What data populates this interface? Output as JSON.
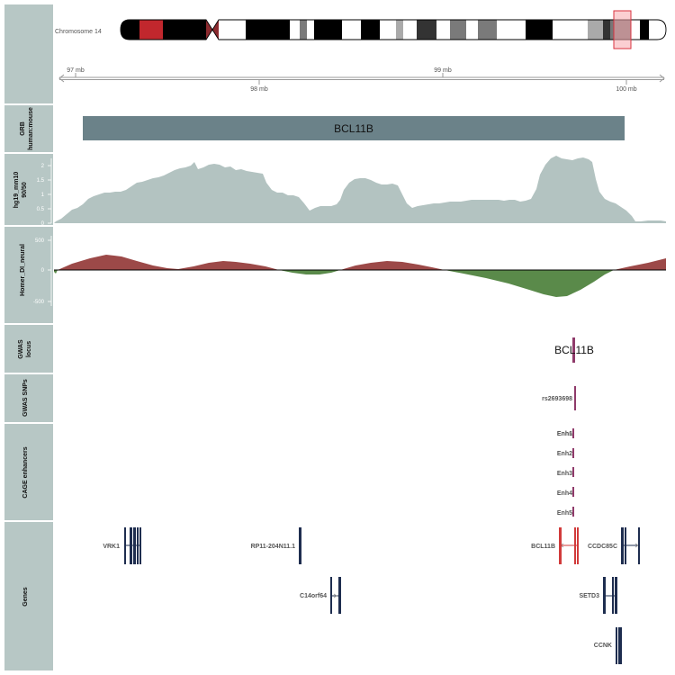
{
  "ideogram": {
    "chromosome_label": "Chromosome 14"
  },
  "axis": {
    "top_ticks": [
      "97 mb",
      "99 mb"
    ],
    "bottom_ticks": [
      "98 mb",
      "100 mb"
    ]
  },
  "tracks": {
    "grb": {
      "label_line1": "GRB",
      "label_line2": "human:mouse",
      "feature": "BCL11B",
      "color": "#6b8289"
    },
    "conservation": {
      "label_line1": "hg19_mm10",
      "label_line2": "90/50",
      "ticks": [
        "0",
        "0.5",
        "1",
        "1.5",
        "2"
      ],
      "color": "#b3c3c1"
    },
    "homer": {
      "label": "Homer_DI_neural",
      "ticks": [
        "500",
        "0",
        "-500"
      ],
      "positive_color": "#9c4948",
      "negative_color": "#5a8a4a"
    },
    "gwas_locus": {
      "label_line1": "GWAS",
      "label_line2": "locus",
      "feature": "BCL11B",
      "color": "#8f3a6a"
    },
    "gwas_snps": {
      "label": "GWAS SNPs",
      "feature": "rs2693698"
    },
    "cage": {
      "label": "CAGE enhancers",
      "items": [
        "Enh1",
        "Enh2",
        "Enh3",
        "Enh4",
        "Enh5"
      ],
      "overlap_label": "Enh6"
    },
    "genes": {
      "label": "Genes",
      "items": [
        "VRK1",
        "RP11-204N11.1",
        "BCL11B",
        "CCDC85C",
        "C14orf64",
        "SETD3",
        "CCNK"
      ],
      "gene_color": "#1e2d4f",
      "highlight_color": "#d13a3a"
    }
  },
  "colors": {
    "panel_bg": "#b7c7c5",
    "centromere": "#8b2a2f",
    "band_red": "#c1272d"
  }
}
